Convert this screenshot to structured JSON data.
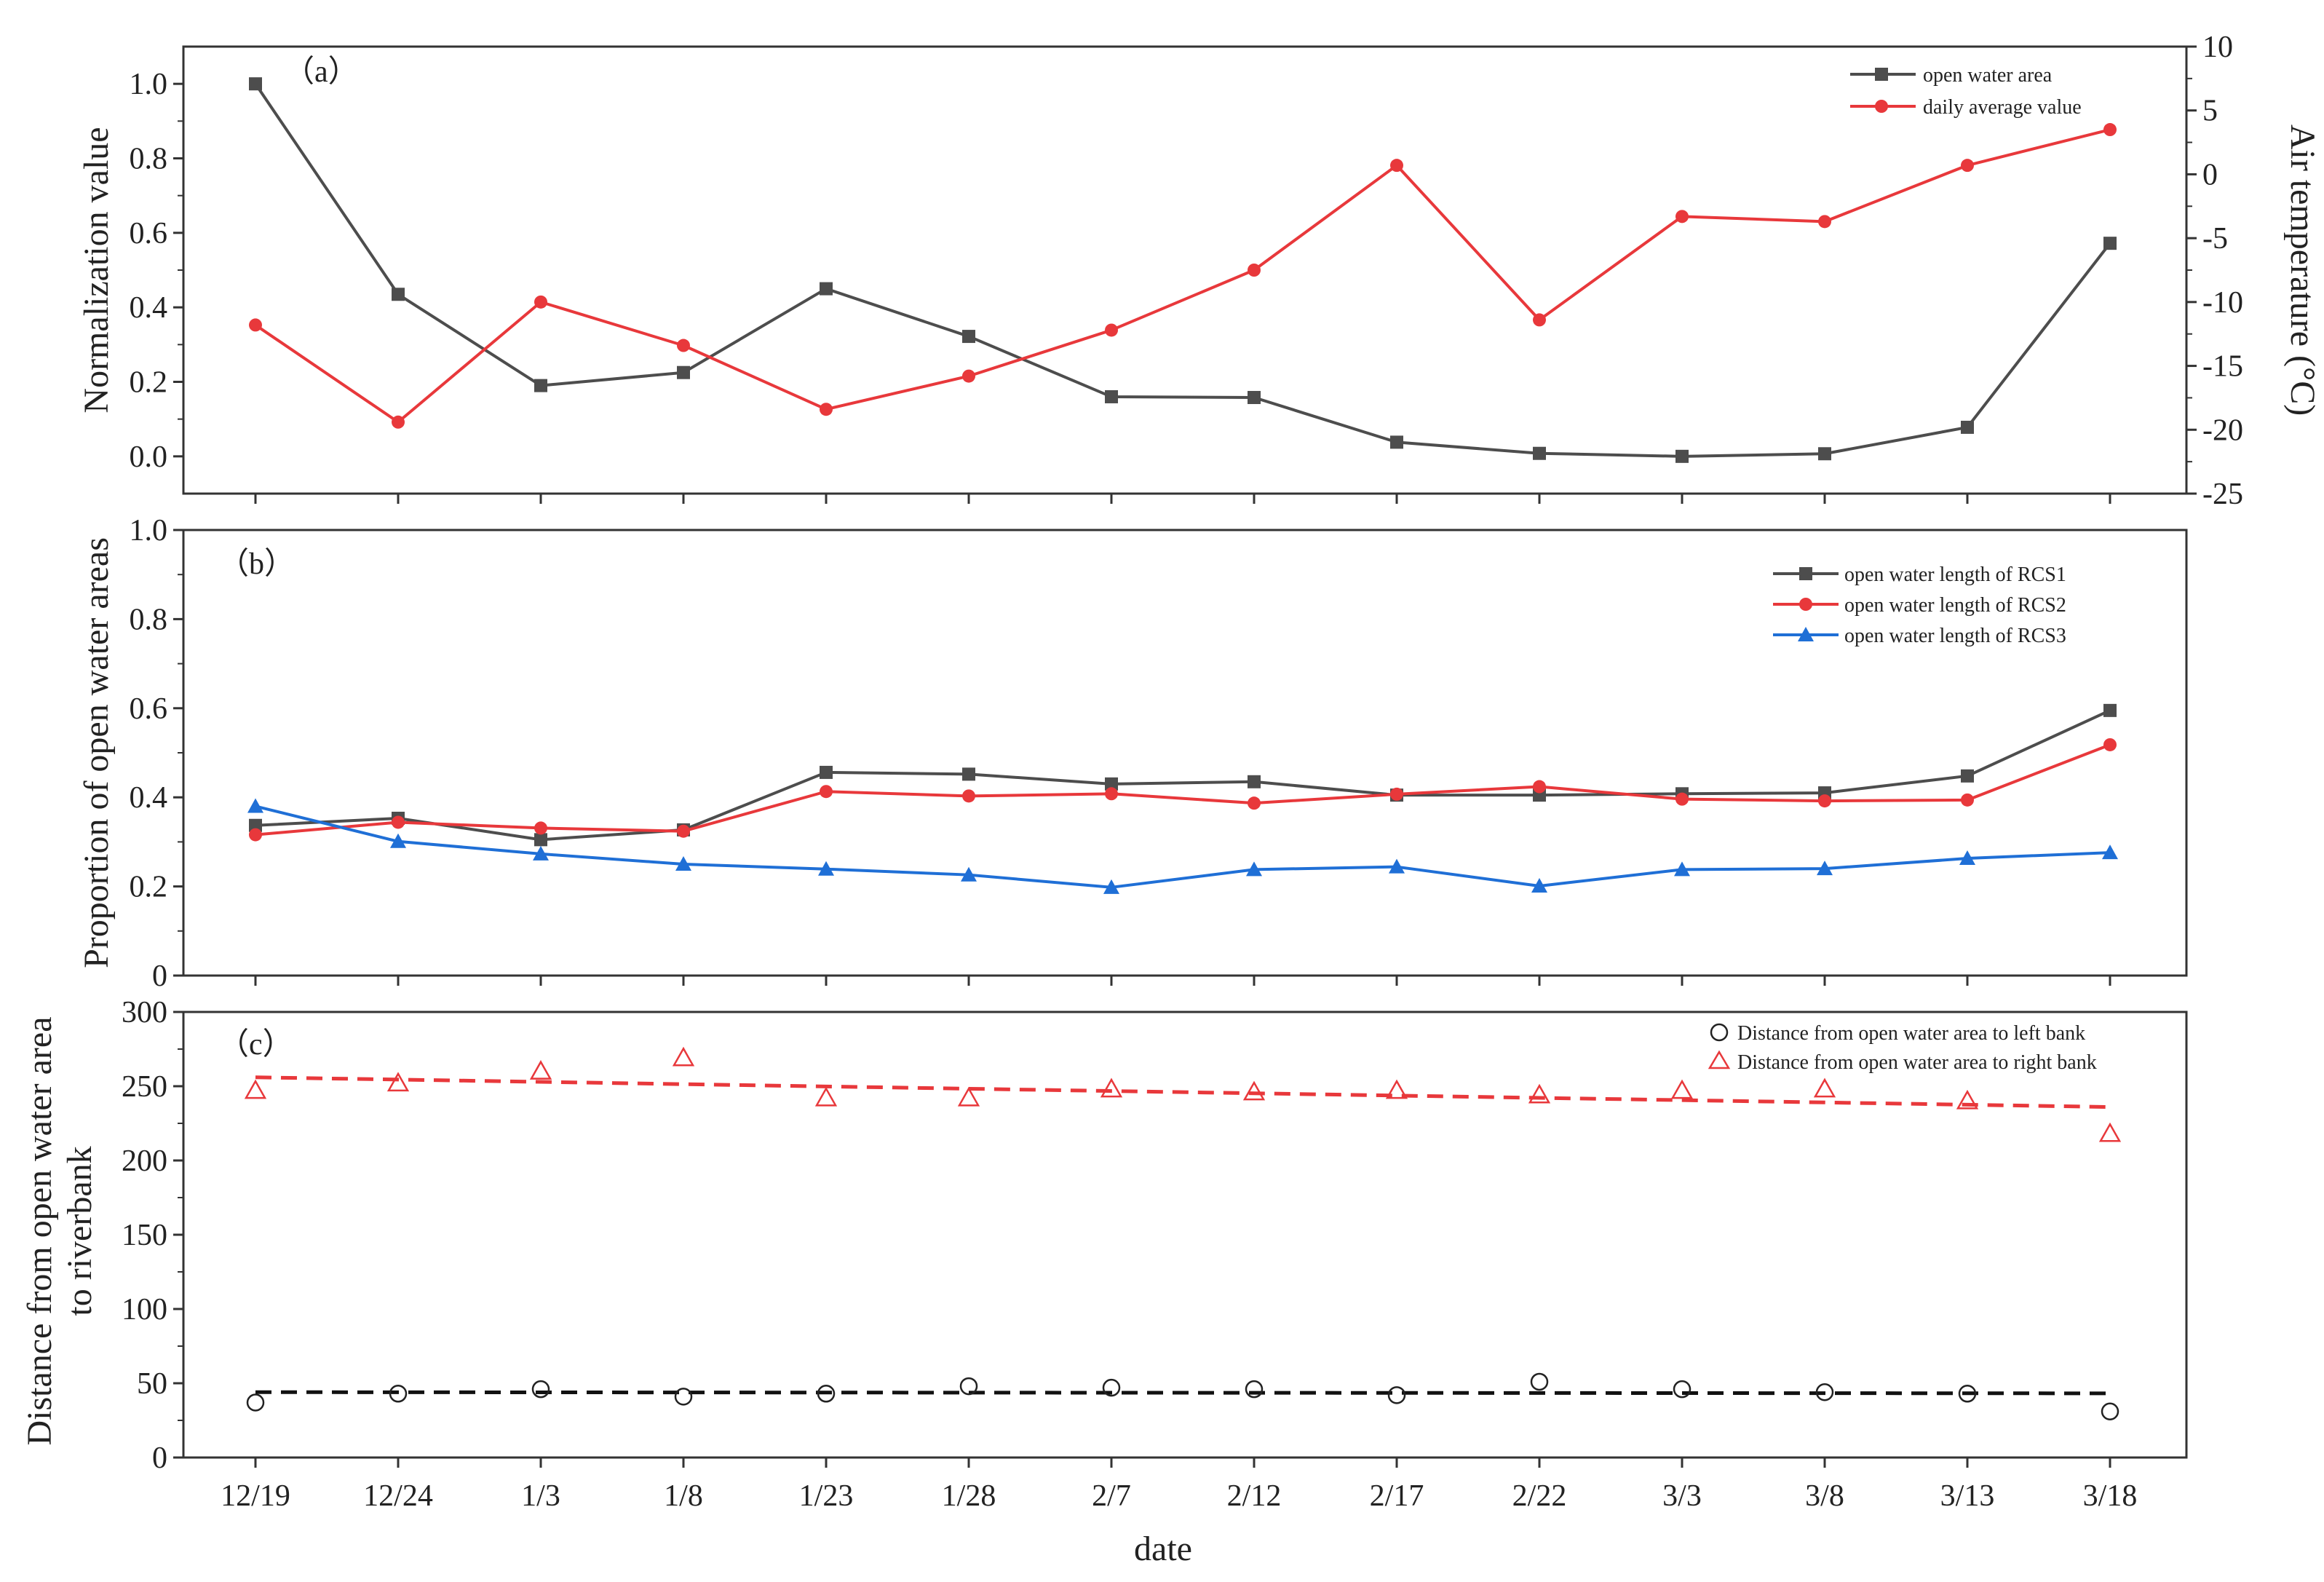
{
  "chart_data": [
    {
      "panel": "a",
      "type": "line",
      "panel_label": "（a）",
      "categories": [
        "12/19",
        "12/24",
        "1/3",
        "1/8",
        "1/23",
        "1/28",
        "2/7",
        "2/12",
        "2/17",
        "2/22",
        "3/3",
        "3/8",
        "3/13",
        "3/18"
      ],
      "ylabel": "Normalization value",
      "ylim": [
        -0.1,
        1.1
      ],
      "yticks": [
        "0.0",
        "0.2",
        "0.4",
        "0.6",
        "0.8",
        "1.0"
      ],
      "y2label": "Air temperature (°C)",
      "y2lim": [
        -25,
        10
      ],
      "y2ticks": [
        "-25",
        "-20",
        "-15",
        "-10",
        "-5",
        "0",
        "5",
        "10"
      ],
      "legend_position": "top-right",
      "series": [
        {
          "name": "open water area",
          "axis": "left",
          "color": "#4d4d4d",
          "marker": "square",
          "values": [
            1.0,
            0.435,
            0.19,
            0.225,
            0.45,
            0.322,
            0.16,
            0.158,
            0.038,
            0.008,
            0.0,
            0.007,
            0.078,
            0.572
          ]
        },
        {
          "name": "daily average value",
          "axis": "right",
          "color": "#e8383b",
          "marker": "circle",
          "values": [
            -11.8,
            -19.4,
            -10.0,
            -13.4,
            -18.4,
            -15.8,
            -12.2,
            -7.5,
            0.7,
            -11.4,
            -3.3,
            -3.7,
            0.7,
            3.5
          ]
        }
      ]
    },
    {
      "panel": "b",
      "type": "line",
      "panel_label": "（b）",
      "categories": [
        "12/19",
        "12/24",
        "1/3",
        "1/8",
        "1/23",
        "1/28",
        "2/7",
        "2/12",
        "2/17",
        "2/22",
        "3/3",
        "3/8",
        "3/13",
        "3/18"
      ],
      "ylabel": "Proportion of open water areas",
      "ylim": [
        0,
        1.0
      ],
      "yticks": [
        "0",
        "0.2",
        "0.4",
        "0.6",
        "0.8",
        "1.0"
      ],
      "legend_position": "top-right",
      "series": [
        {
          "name": "open water length of RCS1",
          "color": "#4d4d4d",
          "marker": "square",
          "values": [
            0.337,
            0.353,
            0.305,
            0.327,
            0.456,
            0.452,
            0.43,
            0.435,
            0.405,
            0.405,
            0.408,
            0.41,
            0.448,
            0.595
          ]
        },
        {
          "name": "open water length of RCS2",
          "color": "#e8383b",
          "marker": "circle",
          "values": [
            0.316,
            0.344,
            0.331,
            0.324,
            0.413,
            0.403,
            0.408,
            0.387,
            0.407,
            0.424,
            0.396,
            0.392,
            0.394,
            0.518
          ]
        },
        {
          "name": "open water length of RCS3",
          "color": "#1f6fd6",
          "marker": "triangle",
          "values": [
            0.38,
            0.301,
            0.273,
            0.25,
            0.239,
            0.226,
            0.198,
            0.238,
            0.244,
            0.201,
            0.238,
            0.24,
            0.263,
            0.276
          ]
        }
      ]
    },
    {
      "panel": "c",
      "type": "scatter",
      "panel_label": "（c）",
      "categories": [
        "12/19",
        "12/24",
        "1/3",
        "1/8",
        "1/23",
        "1/28",
        "2/7",
        "2/12",
        "2/17",
        "2/22",
        "3/3",
        "3/8",
        "3/13",
        "3/18"
      ],
      "ylabel_lines": [
        "Distance from open water area",
        "to riverbank"
      ],
      "ylim": [
        0,
        300
      ],
      "yticks": [
        "0",
        "50",
        "100",
        "150",
        "200",
        "250",
        "300"
      ],
      "xlabel": "date",
      "legend_position": "top-right",
      "series": [
        {
          "name": "Distance from open water area to left bank",
          "color": "#222222",
          "marker": "open-circle",
          "values": [
            37,
            43,
            46,
            41,
            43,
            48,
            47,
            46,
            42,
            51,
            46,
            44,
            43,
            31
          ],
          "trend": [
            44,
            43.2
          ]
        },
        {
          "name": "Distance from open water area to right bank",
          "color": "#e8383b",
          "marker": "open-triangle",
          "values": [
            247,
            252,
            260,
            269,
            242,
            242,
            248,
            246,
            247,
            244,
            247,
            248,
            240,
            218
          ],
          "trend": [
            256,
            236
          ]
        }
      ]
    }
  ]
}
